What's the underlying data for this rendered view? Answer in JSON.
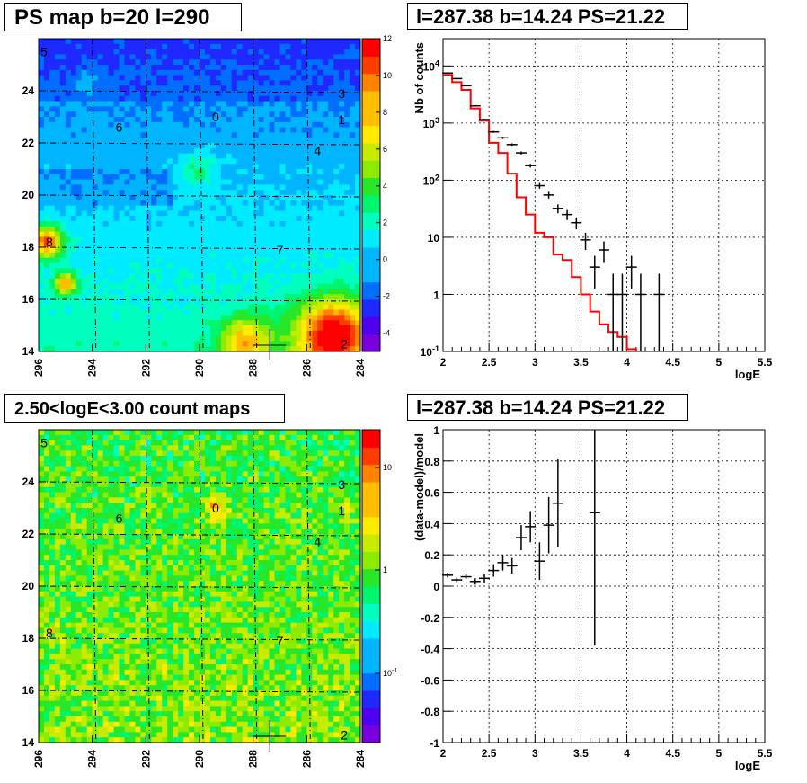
{
  "chart_data": [
    {
      "type": "heatmap",
      "title": "PS map b=20 l=290",
      "xlim": [
        296,
        284
      ],
      "ylim": [
        14,
        26
      ],
      "xticks": [
        "296",
        "294",
        "292",
        "290",
        "288",
        "286",
        "284"
      ],
      "yticks": [
        "14",
        "16",
        "18",
        "20",
        "22",
        "24"
      ],
      "colorbar": {
        "min": -5,
        "max": 12,
        "ticks": [
          "-4",
          "-2",
          "0",
          "2",
          "4",
          "6",
          "8",
          "10",
          "12"
        ]
      },
      "sources": [
        {
          "label": "0",
          "l": 289.4,
          "b": 23.0
        },
        {
          "label": "1",
          "l": 284.7,
          "b": 22.9
        },
        {
          "label": "2",
          "l": 284.6,
          "b": 14.3
        },
        {
          "label": "3",
          "l": 284.7,
          "b": 23.9
        },
        {
          "label": "4",
          "l": 285.6,
          "b": 21.7
        },
        {
          "label": "5",
          "l": 295.8,
          "b": 25.5
        },
        {
          "label": "6",
          "l": 293.0,
          "b": 22.6
        },
        {
          "label": "7",
          "l": 287.0,
          "b": 17.9
        },
        {
          "label": "8",
          "l": 295.6,
          "b": 18.2
        }
      ],
      "cursor": {
        "l": 287.38,
        "b": 14.24
      }
    },
    {
      "type": "line",
      "title": "l=287.38 b=14.24 PS=21.22",
      "xlabel": "logE",
      "ylabel": "Nb of counts",
      "xlim": [
        2,
        5.5
      ],
      "ylim_log": [
        0.1,
        30000
      ],
      "xticks": [
        "2",
        "2.5",
        "3",
        "3.5",
        "4",
        "4.5",
        "5",
        "5.5"
      ],
      "yticks": [
        "10^-1",
        "1",
        "10",
        "10^2",
        "10^3",
        "10^4"
      ],
      "series": [
        {
          "kind": "data",
          "x": [
            2.05,
            2.15,
            2.25,
            2.35,
            2.45,
            2.55,
            2.65,
            2.75,
            2.85,
            2.95,
            3.05,
            3.15,
            3.25,
            3.35,
            3.45,
            3.55,
            3.65,
            3.75,
            3.85,
            3.95,
            4.05,
            4.15,
            4.35
          ],
          "y": [
            7500,
            6000,
            4500,
            2000,
            1150,
            700,
            550,
            420,
            300,
            180,
            80,
            55,
            32,
            25,
            18,
            9,
            3,
            6,
            1,
            1,
            3,
            1,
            1
          ]
        },
        {
          "kind": "model",
          "edges": [
            2.0,
            2.1,
            2.2,
            2.3,
            2.4,
            2.5,
            2.6,
            2.7,
            2.8,
            2.9,
            3.0,
            3.1,
            3.2,
            3.3,
            3.4,
            3.5,
            3.6,
            3.7,
            3.8,
            3.9,
            4.0,
            4.1
          ],
          "y": [
            7000,
            5200,
            3800,
            1800,
            1100,
            450,
            300,
            130,
            50,
            25,
            12,
            10,
            5,
            4,
            2,
            1.0,
            0.5,
            0.3,
            0.22,
            0.18,
            0.11,
            0.1
          ]
        }
      ]
    },
    {
      "type": "heatmap",
      "title": "2.50<logE<3.00 count maps",
      "xlim": [
        296,
        284
      ],
      "ylim": [
        14,
        26
      ],
      "xticks": [
        "296",
        "294",
        "292",
        "290",
        "288",
        "286",
        "284"
      ],
      "yticks": [
        "14",
        "16",
        "18",
        "20",
        "22",
        "24"
      ],
      "colorbar": {
        "log": true,
        "ticks": [
          "10^-1",
          "1",
          "10"
        ]
      },
      "sources": [
        {
          "label": "0",
          "l": 289.4,
          "b": 23.0
        },
        {
          "label": "1",
          "l": 284.7,
          "b": 22.9
        },
        {
          "label": "2",
          "l": 284.6,
          "b": 14.3
        },
        {
          "label": "3",
          "l": 284.7,
          "b": 23.9
        },
        {
          "label": "4",
          "l": 285.6,
          "b": 21.7
        },
        {
          "label": "5",
          "l": 295.8,
          "b": 25.5
        },
        {
          "label": "6",
          "l": 293.0,
          "b": 22.6
        },
        {
          "label": "7",
          "l": 287.0,
          "b": 17.9
        },
        {
          "label": "8",
          "l": 295.6,
          "b": 18.2
        }
      ],
      "cursor": {
        "l": 287.38,
        "b": 14.24
      }
    },
    {
      "type": "scatter",
      "title": "l=287.38 b=14.24 PS=21.22",
      "xlabel": "logE",
      "ylabel": "(data-model)/model",
      "xlim": [
        2,
        5.5
      ],
      "ylim": [
        -1,
        1
      ],
      "xticks": [
        "2",
        "2.5",
        "3",
        "3.5",
        "4",
        "4.5",
        "5",
        "5.5"
      ],
      "yticks": [
        "-1",
        "-0.8",
        "-0.6",
        "-0.4",
        "-0.2",
        "0",
        "0.2",
        "0.4",
        "0.6",
        "0.8",
        "1"
      ],
      "points": [
        {
          "x": 2.05,
          "y": 0.07,
          "err": 0.015
        },
        {
          "x": 2.15,
          "y": 0.04,
          "err": 0.015
        },
        {
          "x": 2.25,
          "y": 0.06,
          "err": 0.015
        },
        {
          "x": 2.35,
          "y": 0.03,
          "err": 0.02
        },
        {
          "x": 2.45,
          "y": 0.05,
          "err": 0.03
        },
        {
          "x": 2.55,
          "y": 0.1,
          "err": 0.04
        },
        {
          "x": 2.65,
          "y": 0.15,
          "err": 0.05
        },
        {
          "x": 2.75,
          "y": 0.13,
          "err": 0.05
        },
        {
          "x": 2.85,
          "y": 0.31,
          "err": 0.08
        },
        {
          "x": 2.95,
          "y": 0.38,
          "err": 0.1
        },
        {
          "x": 3.05,
          "y": 0.16,
          "err": 0.12
        },
        {
          "x": 3.15,
          "y": 0.39,
          "err": 0.18
        },
        {
          "x": 3.25,
          "y": 0.53,
          "err": 0.28
        },
        {
          "x": 3.65,
          "y": 0.47,
          "err": 0.85
        }
      ]
    }
  ]
}
